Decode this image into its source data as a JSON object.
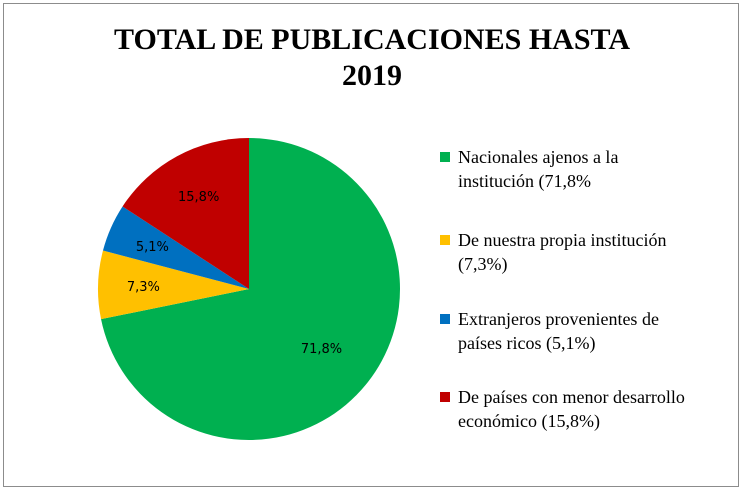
{
  "chart_data": {
    "type": "pie",
    "title_line1": "TOTAL DE PUBLICACIONES HASTA",
    "title_line2": "2019",
    "slices": [
      {
        "label_line1": "Nacionales ajenos a la",
        "label_line2": "institución (71,8%",
        "value": 71.8,
        "data_label": "71,8%",
        "color": "#00b050"
      },
      {
        "label_line1": "De nuestra propia institución",
        "label_line2": "(7,3%)",
        "value": 7.3,
        "data_label": "7,3%",
        "color": "#ffc000"
      },
      {
        "label_line1": "Extranjeros provenientes de",
        "label_line2": "países ricos (5,1%)",
        "value": 5.1,
        "data_label": "5,1%",
        "color": "#0070c0"
      },
      {
        "label_line1": "De países con menor desarrollo",
        "label_line2": "económico (15,8%)",
        "value": 15.8,
        "data_label": "15,8%",
        "color": "#c00000"
      }
    ],
    "legend_position": "right"
  }
}
